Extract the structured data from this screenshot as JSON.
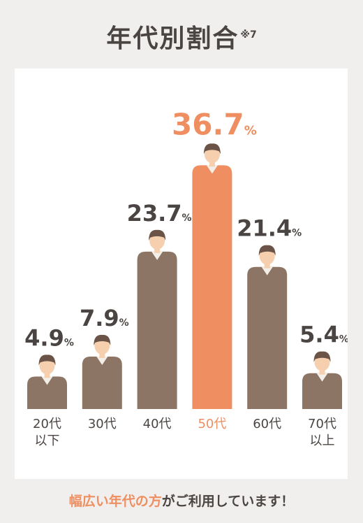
{
  "title": "年代別割合",
  "title_note": "※7",
  "footer": {
    "highlight": "幅広い年代の方",
    "rest": "がご利用しています！"
  },
  "colors": {
    "bar": "#8c7565",
    "highlight": "#ef8f61",
    "text": "#4a4542",
    "background": "#f1efed",
    "panel": "#ffffff"
  },
  "chart_data": {
    "type": "bar",
    "title": "年代別割合",
    "unit": "%",
    "categories": [
      "20代\n以下",
      "30代",
      "40代",
      "50代",
      "60代",
      "70代\n以上"
    ],
    "values": [
      4.9,
      7.9,
      23.7,
      36.7,
      21.4,
      5.4
    ],
    "highlight_index": 3,
    "ylim": [
      0,
      40
    ],
    "grid": false
  }
}
